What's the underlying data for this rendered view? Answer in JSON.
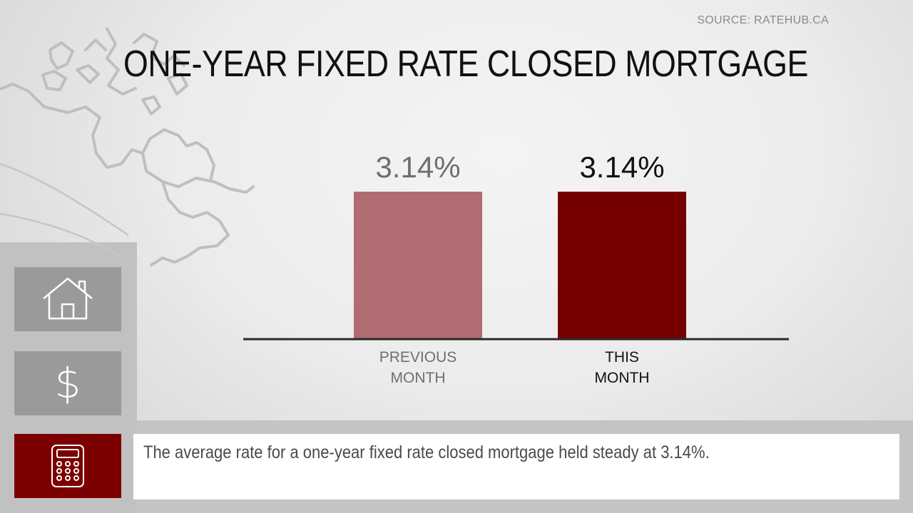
{
  "source": "SOURCE: RATEHUB.CA",
  "title": "ONE-YEAR FIXED RATE CLOSED MORTGAGE",
  "caption": "The average rate for a one-year fixed rate closed mortgage held steady at 3.14%.",
  "icons": [
    "house-icon",
    "dollar-icon",
    "calculator-icon"
  ],
  "colors": {
    "previous_bar": "#b06c73",
    "current_bar": "#760000",
    "accent_tile": "#7d0000",
    "grey_tile": "#9a9a9a"
  },
  "chart_data": {
    "type": "bar",
    "categories": [
      "PREVIOUS MONTH",
      "THIS MONTH"
    ],
    "category_lines": [
      [
        "PREVIOUS",
        "MONTH"
      ],
      [
        "THIS",
        "MONTH"
      ]
    ],
    "values": [
      3.14,
      3.14
    ],
    "value_labels": [
      "3.14%",
      "3.14%"
    ],
    "ylim": [
      0,
      3.14
    ],
    "grid": false,
    "legend": "none"
  }
}
